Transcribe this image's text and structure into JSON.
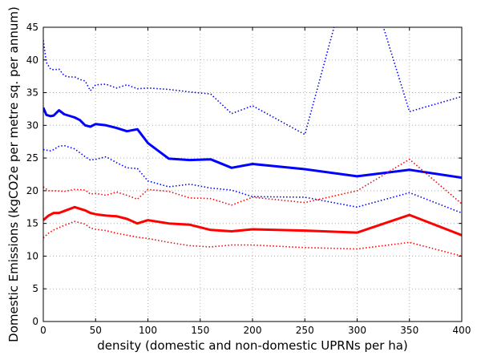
{
  "chart_data": {
    "type": "line",
    "title": "",
    "xlabel": "density (domestic and non-domestic UPRNs per ha)",
    "ylabel": "Domestic Emissions (kgCO2e per metre sq. per annum)",
    "xlim": [
      0,
      400
    ],
    "ylim": [
      0,
      45
    ],
    "xticks": [
      0,
      50,
      100,
      150,
      200,
      250,
      300,
      350,
      400
    ],
    "yticks": [
      0,
      5,
      10,
      15,
      20,
      25,
      30,
      35,
      40,
      45
    ],
    "xtick_labels": [
      "0",
      "50",
      "100",
      "150",
      "200",
      "250",
      "300",
      "350",
      "400"
    ],
    "ytick_labels": [
      "0",
      "5",
      "10",
      "15",
      "20",
      "25",
      "30",
      "35",
      "40",
      "45"
    ],
    "grid": true,
    "series": [
      {
        "color": "#0000ff",
        "style": "solid",
        "x": [
          0,
          3,
          7,
          10,
          15,
          20,
          30,
          35,
          40,
          45,
          50,
          60,
          70,
          80,
          90,
          100,
          120,
          140,
          160,
          180,
          200,
          250,
          300,
          350,
          400
        ],
        "y": [
          32.7,
          31.6,
          31.4,
          31.5,
          32.3,
          31.7,
          31.2,
          30.8,
          30.0,
          29.8,
          30.2,
          30.0,
          29.6,
          29.1,
          29.4,
          27.3,
          24.9,
          24.7,
          24.8,
          23.5,
          24.1,
          23.3,
          22.2,
          23.2,
          22.0
        ]
      },
      {
        "color": "#0000ff",
        "style": "dotted",
        "x": [
          0,
          3,
          7,
          10,
          15,
          20,
          25,
          30,
          35,
          40,
          45,
          50,
          60,
          70,
          80,
          90,
          100,
          120,
          140,
          160,
          180,
          200,
          250,
          300,
          350,
          400
        ],
        "y": [
          43.0,
          39.6,
          38.6,
          38.5,
          38.6,
          37.6,
          37.4,
          37.4,
          37.0,
          36.8,
          35.3,
          36.2,
          36.3,
          35.7,
          36.2,
          35.6,
          35.7,
          35.5,
          35.1,
          34.8,
          31.8,
          33.0,
          28.6,
          58.0,
          32.1,
          34.4
        ]
      },
      {
        "color": "#0000ff",
        "style": "dotted",
        "x": [
          0,
          3,
          7,
          10,
          15,
          20,
          30,
          35,
          40,
          45,
          50,
          60,
          70,
          80,
          90,
          100,
          120,
          140,
          160,
          180,
          200,
          250,
          300,
          350,
          400
        ],
        "y": [
          26.3,
          26.2,
          26.1,
          26.3,
          26.8,
          26.9,
          26.4,
          25.8,
          25.2,
          24.7,
          24.8,
          25.2,
          24.3,
          23.5,
          23.4,
          21.5,
          20.6,
          21.0,
          20.4,
          20.1,
          19.1,
          19.0,
          17.5,
          19.7,
          16.6
        ]
      },
      {
        "color": "#ff0000",
        "style": "solid",
        "x": [
          0,
          5,
          10,
          15,
          20,
          30,
          40,
          45,
          50,
          60,
          70,
          80,
          90,
          100,
          120,
          140,
          160,
          180,
          200,
          250,
          300,
          350,
          400
        ],
        "y": [
          15.5,
          16.2,
          16.6,
          16.6,
          16.9,
          17.5,
          17.0,
          16.6,
          16.4,
          16.2,
          16.1,
          15.7,
          15.0,
          15.5,
          15.0,
          14.8,
          14.0,
          13.8,
          14.1,
          13.9,
          13.6,
          16.3,
          13.2
        ]
      },
      {
        "color": "#ff0000",
        "style": "dotted",
        "x": [
          0,
          5,
          10,
          20,
          30,
          40,
          45,
          50,
          60,
          70,
          80,
          90,
          100,
          120,
          140,
          160,
          180,
          200,
          250,
          300,
          350,
          400
        ],
        "y": [
          20.6,
          20.0,
          20.0,
          19.9,
          20.2,
          20.1,
          19.5,
          19.6,
          19.3,
          19.8,
          19.3,
          18.7,
          20.2,
          19.9,
          18.9,
          18.8,
          17.8,
          19.0,
          18.2,
          20.0,
          24.8,
          18.0
        ]
      },
      {
        "color": "#ff0000",
        "style": "dotted",
        "x": [
          0,
          5,
          10,
          20,
          30,
          40,
          45,
          50,
          60,
          70,
          80,
          90,
          100,
          120,
          140,
          160,
          180,
          200,
          250,
          300,
          350,
          400
        ],
        "y": [
          12.8,
          13.5,
          14.0,
          14.7,
          15.3,
          14.9,
          14.3,
          14.1,
          13.9,
          13.5,
          13.2,
          12.9,
          12.7,
          12.1,
          11.6,
          11.4,
          11.7,
          11.7,
          11.3,
          11.1,
          12.1,
          10.0
        ]
      }
    ]
  }
}
